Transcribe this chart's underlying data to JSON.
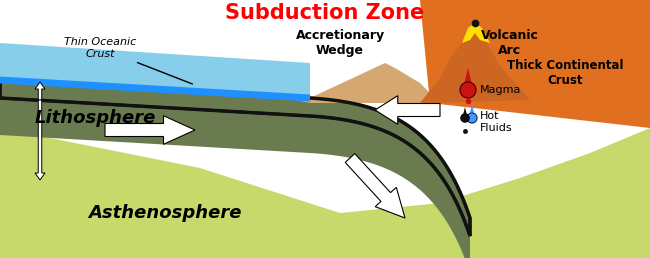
{
  "title": "Subduction Zone",
  "title_color": "#FF0000",
  "title_fontsize": 15,
  "bg_color": "#FFFFFF",
  "colors": {
    "lithosphere": "#6B7B50",
    "asthenosphere": "#C8D96B",
    "continental_crust": "#E07020",
    "accretionary_wedge": "#D4A870",
    "volcano": "#CC6622",
    "lava_yellow": "#FFE000",
    "ocean_water": "#87CEEB",
    "ocean_blue_line": "#1E90FF",
    "slab_outline": "#111111"
  },
  "labels": {
    "thin_oceanic_crust": "Thin Oceanic\nCrust",
    "lithosphere": "Lithosphere",
    "asthenosphere": "Asthenosphere",
    "accretionary_wedge": "Accretionary\nWedge",
    "volcanic_arc": "Volcanic\nArc",
    "thick_continental_crust": "Thick Continental\nCrust",
    "magma": "Magma",
    "hot_fluids": "Hot\nFluids"
  }
}
